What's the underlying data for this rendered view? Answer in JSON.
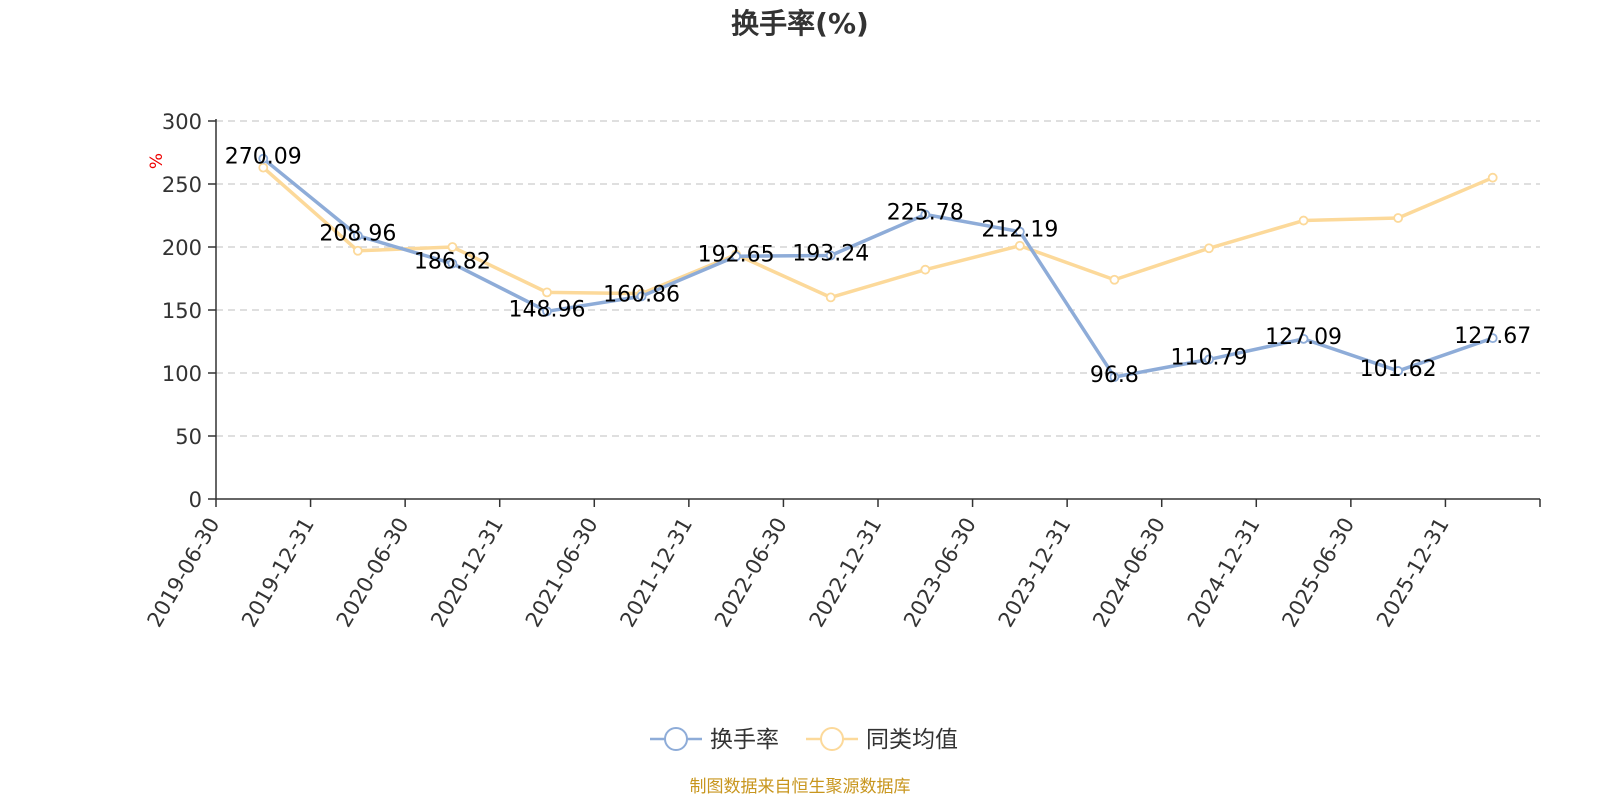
{
  "chart_data": {
    "type": "line",
    "title": "换手率(%)",
    "ylabel": "%",
    "ylim": [
      0,
      300
    ],
    "yticks": [
      0,
      50,
      100,
      150,
      200,
      250,
      300
    ],
    "grid": true,
    "categories": [
      "2019-06-30",
      "2019-12-31",
      "2020-06-30",
      "2020-12-31",
      "2021-06-30",
      "2021-12-31",
      "2022-06-30",
      "2022-12-31",
      "2023-06-30",
      "2023-12-31",
      "2024-06-30",
      "2024-12-31",
      "2025-06-30",
      "2025-12-31"
    ],
    "series": [
      {
        "name": "换手率",
        "color": "#8eacd8",
        "values": [
          270.09,
          208.96,
          186.82,
          148.96,
          160.86,
          192.65,
          193.24,
          225.78,
          212.19,
          96.8,
          110.79,
          127.09,
          101.62,
          127.67
        ],
        "labels_shown": true
      },
      {
        "name": "同类均值",
        "color": "#fcd99a",
        "values": [
          263,
          197,
          200,
          164,
          163,
          194,
          160,
          182,
          201,
          174,
          199,
          221,
          223,
          255
        ],
        "labels_shown": false
      }
    ],
    "legend_position": "bottom-center",
    "source_note": "制图数据来自恒生聚源数据库",
    "source_color": "#c8961e",
    "unit_color": "#ee0000"
  }
}
